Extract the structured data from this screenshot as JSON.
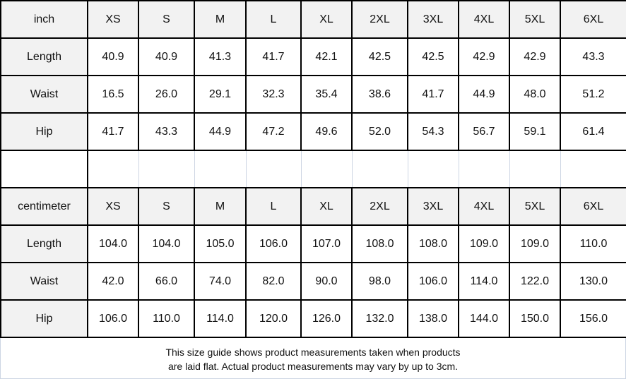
{
  "sizes": [
    "XS",
    "S",
    "M",
    "L",
    "XL",
    "2XL",
    "3XL",
    "4XL",
    "5XL",
    "6XL"
  ],
  "tables": [
    {
      "unit": "inch",
      "rows": [
        {
          "label": "Length",
          "values": [
            "40.9",
            "40.9",
            "41.3",
            "41.7",
            "42.1",
            "42.5",
            "42.5",
            "42.9",
            "42.9",
            "43.3"
          ]
        },
        {
          "label": "Waist",
          "values": [
            "16.5",
            "26.0",
            "29.1",
            "32.3",
            "35.4",
            "38.6",
            "41.7",
            "44.9",
            "48.0",
            "51.2"
          ]
        },
        {
          "label": "Hip",
          "values": [
            "41.7",
            "43.3",
            "44.9",
            "47.2",
            "49.6",
            "52.0",
            "54.3",
            "56.7",
            "59.1",
            "61.4"
          ]
        }
      ]
    },
    {
      "unit": "centimeter",
      "rows": [
        {
          "label": "Length",
          "values": [
            "104.0",
            "104.0",
            "105.0",
            "106.0",
            "107.0",
            "108.0",
            "108.0",
            "109.0",
            "109.0",
            "110.0"
          ]
        },
        {
          "label": "Waist",
          "values": [
            "42.0",
            "66.0",
            "74.0",
            "82.0",
            "90.0",
            "98.0",
            "106.0",
            "114.0",
            "122.0",
            "130.0"
          ]
        },
        {
          "label": "Hip",
          "values": [
            "106.0",
            "110.0",
            "114.0",
            "120.0",
            "126.0",
            "132.0",
            "138.0",
            "144.0",
            "150.0",
            "156.0"
          ]
        }
      ]
    }
  ],
  "footer": {
    "line1": "This size guide shows product measurements taken when products",
    "line2": "are laid flat. Actual product measurements may vary by up to 3cm."
  }
}
